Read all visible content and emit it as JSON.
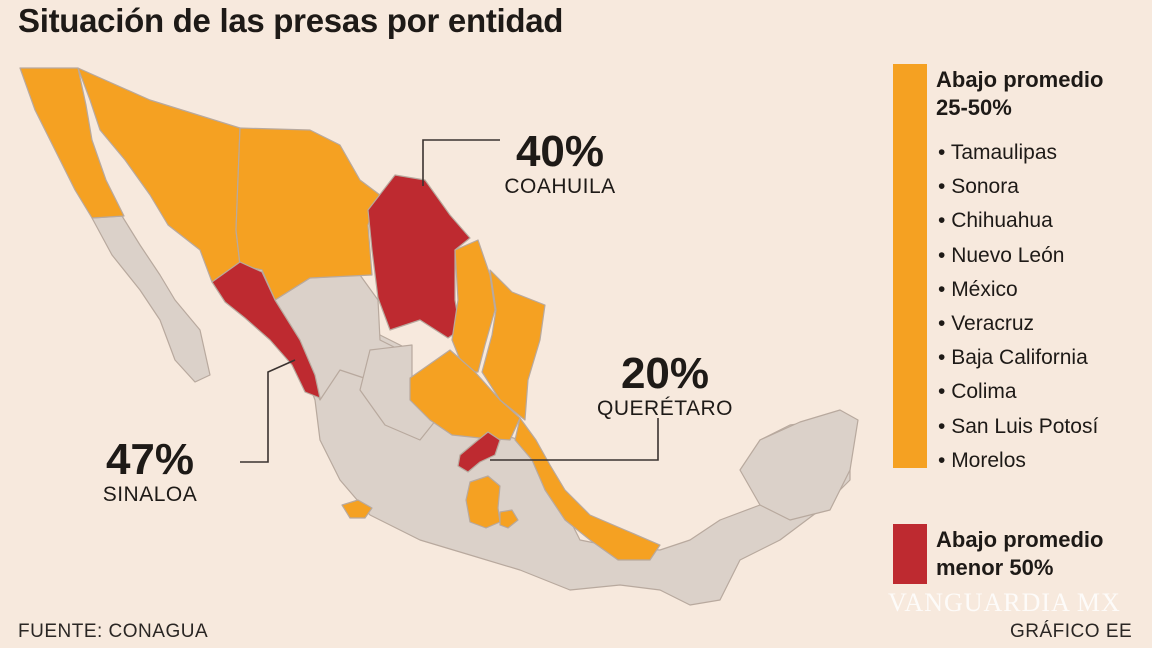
{
  "title": "Situación de las presas por entidad",
  "callouts": {
    "coahuila": {
      "value": "40%",
      "state": "COAHUILA"
    },
    "queretaro": {
      "value": "20%",
      "state": "QUERÉTARO"
    },
    "sinaloa": {
      "value": "47%",
      "state": "SINALOA"
    }
  },
  "legend": {
    "orange": {
      "color": "#f5a122",
      "title_line1": "Abajo promedio",
      "title_line2": "25-50%",
      "states": [
        "Tamaulipas",
        "Sonora",
        "Chihuahua",
        "Nuevo León",
        "México",
        "Veracruz",
        "Baja California",
        "Colima",
        "San Luis Potosí",
        "Morelos"
      ]
    },
    "red": {
      "color": "#be2a30",
      "title_line1": "Abajo promedio",
      "title_line2": "menor 50%"
    }
  },
  "map_colors": {
    "neutral": "#dbd1c9",
    "orange": "#f5a122",
    "red": "#be2a30",
    "border": "#b8a99e"
  },
  "footer": {
    "source": "FUENTE: CONAGUA",
    "credit": "GRÁFICO EE",
    "watermark": "VANGUARDIA MX"
  }
}
